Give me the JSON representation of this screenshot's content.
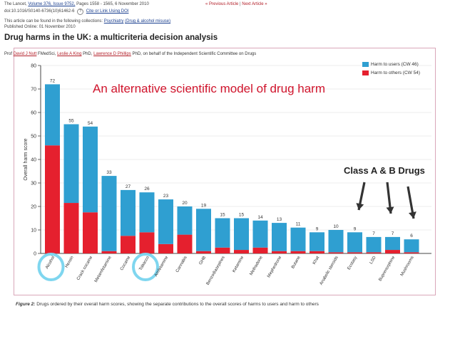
{
  "header": {
    "line1_prefix": "The Lancet,",
    "volume_link": "Volume 376, Issue 9752,",
    "line1_rest": "Pages 1558 - 1565, 6 November 2010",
    "doi": "doi:10.1016/S0140-6736(10)61462-6",
    "cite_link": "Cite or Link Using DOI",
    "collections_prefix": "This article can be found in the following collections:",
    "collection1": "Psychiatry",
    "collection2": "(Drug & alcohol misuse)",
    "published": "Published Online: 01 November 2010",
    "prev_link": "« Previous Article",
    "next_link": "Next Article »",
    "nav_sep": "|"
  },
  "article": {
    "title": "Drug harms in the UK: a multicriteria decision analysis",
    "authors_prefix": "Prof",
    "author1": "David J Nutt",
    "author1_suffix": "FMedSci",
    "author2": "Leslie A King",
    "author2_suffix": "PhD",
    "author3": "Lawrence D Phillips",
    "author3_suffix": "PhD",
    "authors_rest": ", on behalf of the Independent Scientific Committee on Drugs"
  },
  "overlay_text": "An alternative scientific model of drug harm",
  "class_label": "Class A & B Drugs",
  "caption": {
    "figure_label": "Figure 2:",
    "text": "Drugs ordered by their overall harm scores, showing the separate contributions to the overall scores of harms to users and harm to others"
  },
  "colors": {
    "users": "#2f9fd1",
    "others": "#e5202e",
    "circle": "#7fd6ef",
    "frame": "#d9a7b9"
  },
  "chart_data": {
    "type": "bar",
    "stacked": true,
    "ylabel": "Overall harm score",
    "ylim": [
      0,
      80
    ],
    "yticks": [
      0,
      10,
      20,
      30,
      40,
      50,
      60,
      70,
      80
    ],
    "categories": [
      "Alcohol",
      "Heroin",
      "Crack cocaine",
      "Metamfetamine",
      "Cocaine",
      "Tobacco",
      "Amfetamine",
      "Cannabis",
      "GHB",
      "Benzodiazepines",
      "Ketamine",
      "Methadone",
      "Mephedrone",
      "Butane",
      "Khat",
      "Anabolic steroids",
      "Ecstasy",
      "LSD",
      "Buprenorphine",
      "Mushrooms"
    ],
    "totals": [
      72,
      55,
      54,
      33,
      27,
      26,
      23,
      20,
      19,
      15,
      15,
      14,
      13,
      11,
      9,
      10,
      9,
      7,
      7,
      6
    ],
    "series": [
      {
        "name": "Harm to others (CW 54)",
        "values": [
          46,
          21.5,
          17.5,
          1,
          7.5,
          9,
          4,
          8,
          1,
          2.5,
          1.5,
          2.5,
          1,
          1,
          1,
          0.5,
          0.5,
          0.5,
          1.5,
          0.5
        ]
      },
      {
        "name": "Harm to users (CW 46)",
        "values": [
          26,
          33.5,
          36.5,
          32,
          19.5,
          17,
          19,
          12,
          18,
          12.5,
          13.5,
          11.5,
          12,
          10,
          8,
          9.5,
          8.5,
          6.5,
          5.5,
          5.5
        ]
      }
    ],
    "highlighted": [
      "Alcohol",
      "Tobacco"
    ],
    "legend_position": "top-right"
  }
}
